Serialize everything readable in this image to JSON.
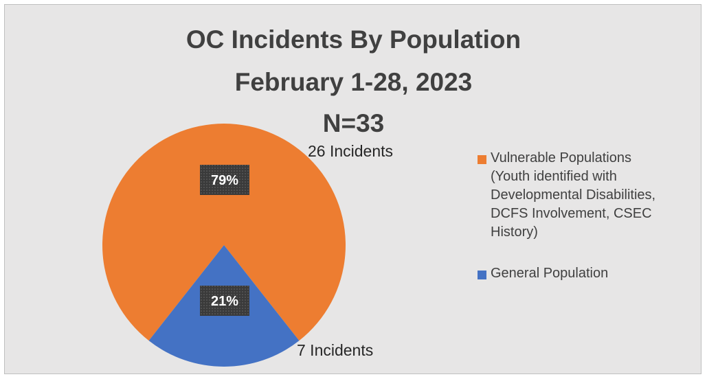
{
  "chart_data": {
    "type": "pie",
    "title_lines": [
      "OC Incidents By Population",
      "February 1-28, 2023",
      "N=33"
    ],
    "slices": [
      {
        "name": "Vulnerable Populations (Youth identified with Developmental Disabilities, DCFS Involvement, CSEC History)",
        "legend_lines": [
          "Vulnerable Populations",
          "(Youth identified with",
          "Developmental Disabilities,",
          "DCFS Involvement, CSEC",
          "History)"
        ],
        "value": 26,
        "percent_label": "79%",
        "count_label": "26 Incidents",
        "color": "#ed7d31"
      },
      {
        "name": "General Population",
        "legend_lines": [
          "General Population"
        ],
        "value": 7,
        "percent_label": "21%",
        "count_label": "7 Incidents",
        "color": "#4472c4"
      }
    ],
    "legend_position": "right"
  }
}
